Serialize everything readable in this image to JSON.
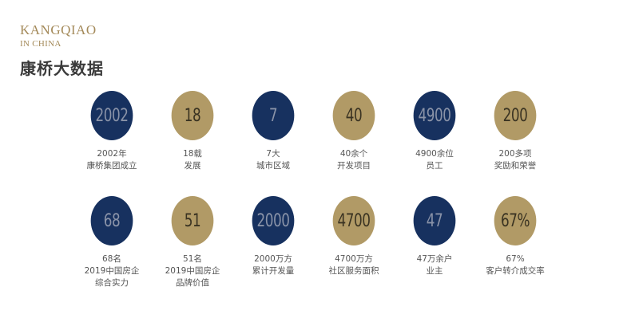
{
  "brand": {
    "line1": "KANGQIAO",
    "line2": "IN CHINA"
  },
  "page_title": "康桥大数据",
  "colors": {
    "navy": "#17315f",
    "gold": "#b19a66"
  },
  "stats": [
    {
      "value": "2002",
      "color": "navy",
      "caption": [
        "2002年",
        "康桥集团成立"
      ]
    },
    {
      "value": "18",
      "color": "gold",
      "caption": [
        "18载",
        "发展"
      ]
    },
    {
      "value": "7",
      "color": "navy",
      "caption": [
        "7大",
        "城市区域"
      ]
    },
    {
      "value": "40",
      "color": "gold",
      "caption": [
        "40余个",
        "开发项目"
      ]
    },
    {
      "value": "4900",
      "color": "navy",
      "caption": [
        "4900余位",
        "员工"
      ]
    },
    {
      "value": "200",
      "color": "gold",
      "caption": [
        "200多项",
        "奖励和荣誉"
      ]
    },
    {
      "value": "68",
      "color": "navy",
      "caption": [
        "68名",
        "2019中国房企",
        "综合实力"
      ]
    },
    {
      "value": "51",
      "color": "gold",
      "caption": [
        "51名",
        "2019中国房企",
        "品牌价值"
      ]
    },
    {
      "value": "2000",
      "color": "navy",
      "caption": [
        "2000万方",
        "累计开发量"
      ]
    },
    {
      "value": "4700",
      "color": "gold",
      "caption": [
        "4700万方",
        "社区服务面积"
      ]
    },
    {
      "value": "47",
      "color": "navy",
      "caption": [
        "47万余户",
        "业主"
      ]
    },
    {
      "value": "67%",
      "color": "gold",
      "caption": [
        "67%",
        "客户转介成交率"
      ]
    }
  ]
}
